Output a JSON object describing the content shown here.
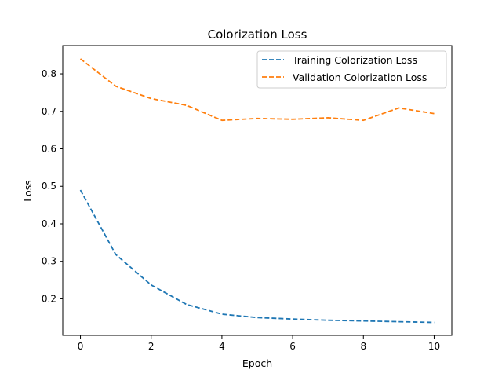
{
  "chart_data": {
    "type": "line",
    "title": "Colorization Loss",
    "xlabel": "Epoch",
    "ylabel": "Loss",
    "xlim": [
      -0.5,
      10.5
    ],
    "ylim": [
      0.1025,
      0.8755
    ],
    "xticks": [
      0,
      2,
      4,
      6,
      8,
      10
    ],
    "yticks": [
      0.2,
      0.3,
      0.4,
      0.5,
      0.6,
      0.7,
      0.8
    ],
    "grid": false,
    "legend_position": "top-right",
    "series": [
      {
        "name": "Training Colorization Loss",
        "color": "#1f77b4",
        "line_style": "dashed",
        "x": [
          0,
          1,
          2,
          3,
          4,
          5,
          6,
          7,
          8,
          9,
          10
        ],
        "values": [
          0.49,
          0.318,
          0.237,
          0.185,
          0.159,
          0.15,
          0.146,
          0.143,
          0.141,
          0.139,
          0.137
        ]
      },
      {
        "name": "Validation Colorization Loss",
        "color": "#ff7f0e",
        "line_style": "dashed",
        "x": [
          0,
          1,
          2,
          3,
          4,
          5,
          6,
          7,
          8,
          9,
          10
        ],
        "values": [
          0.84,
          0.767,
          0.734,
          0.716,
          0.676,
          0.681,
          0.679,
          0.683,
          0.676,
          0.709,
          0.694
        ]
      }
    ]
  }
}
